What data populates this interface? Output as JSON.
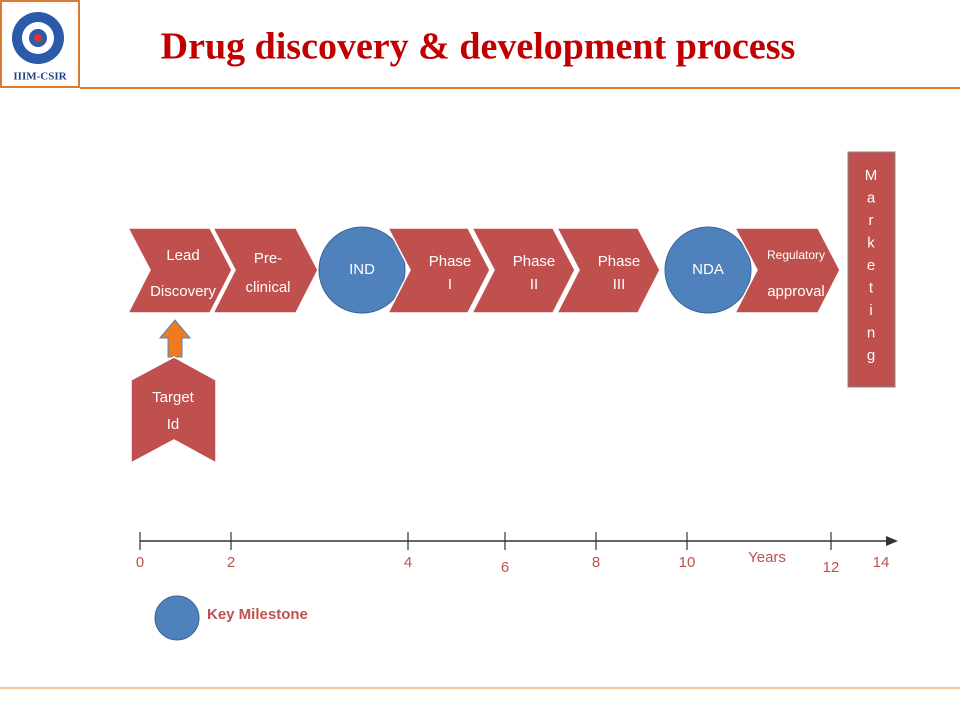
{
  "header": {
    "logo_text": "IIIM-CSIR",
    "title": "Drug discovery & development process"
  },
  "flow": [
    {
      "lines": [
        "Lead",
        "Discovery"
      ]
    },
    {
      "lines": [
        "Pre-",
        "clinical"
      ]
    },
    {
      "lines": [
        "IND"
      ]
    },
    {
      "lines": [
        "Phase",
        "I"
      ]
    },
    {
      "lines": [
        "Phase",
        "II"
      ]
    },
    {
      "lines": [
        "Phase",
        "III"
      ]
    },
    {
      "lines": [
        "NDA"
      ]
    },
    {
      "lines": [
        "Regulatory",
        "approval"
      ]
    }
  ],
  "marketing": "Marketing",
  "target": {
    "lines": [
      "Target",
      "Id"
    ]
  },
  "timeline": {
    "ticks": [
      0,
      2,
      4,
      6,
      8,
      10,
      12,
      14
    ],
    "axis_label": "Years"
  },
  "legend": {
    "label": "Key Milestone"
  }
}
